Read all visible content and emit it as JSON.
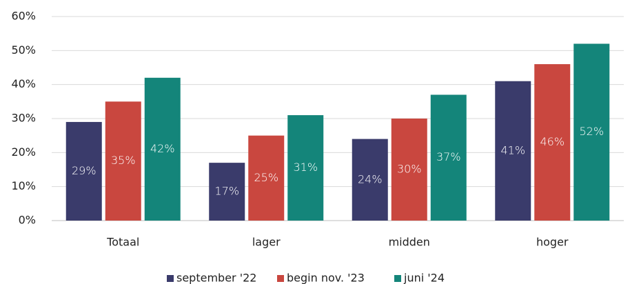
{
  "chart_data": {
    "type": "bar",
    "categories": [
      "Totaal",
      "lager",
      "midden",
      "hoger"
    ],
    "series": [
      {
        "name": "september '22",
        "color": "#3a3b6b",
        "values": [
          29,
          17,
          24,
          41
        ],
        "value_labels": [
          "29%",
          "17%",
          "24%",
          "41%"
        ]
      },
      {
        "name": "begin nov. '23",
        "color": "#c9473f",
        "values": [
          35,
          25,
          30,
          46
        ],
        "value_labels": [
          "35%",
          "25%",
          "30%",
          "46%"
        ]
      },
      {
        "name": "juni '24",
        "color": "#14857a",
        "values": [
          42,
          31,
          37,
          52
        ],
        "value_labels": [
          "42%",
          "31%",
          "37%",
          "52%"
        ]
      }
    ],
    "ylim": [
      0,
      60
    ],
    "yticks": [
      {
        "value": 0,
        "label": "0%"
      },
      {
        "value": 10,
        "label": "10%"
      },
      {
        "value": 20,
        "label": "20%"
      },
      {
        "value": 30,
        "label": "30%"
      },
      {
        "value": 40,
        "label": "40%"
      },
      {
        "value": 50,
        "label": "50%"
      },
      {
        "value": 60,
        "label": "60%"
      }
    ],
    "grid": true,
    "legend": "bottom"
  }
}
